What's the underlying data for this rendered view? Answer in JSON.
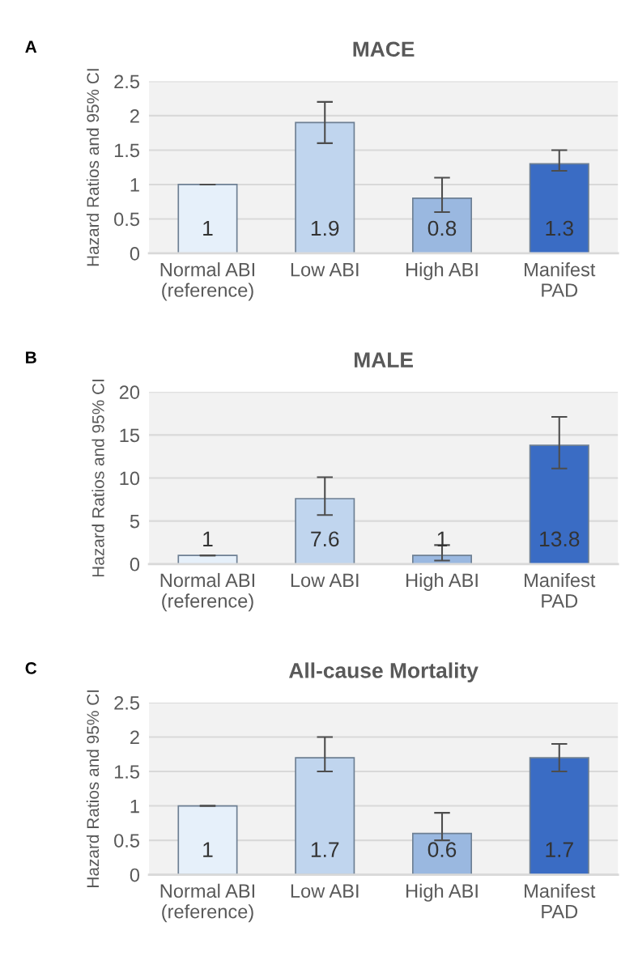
{
  "chart_data": [
    {
      "type": "bar",
      "title": "MACE",
      "ylabel": "Hazard Ratios and 95% CI",
      "annotations": [
        "A"
      ],
      "categories": [
        "Normal ABI\n(reference)",
        "Low ABI",
        "High ABI",
        "Manifest\nPAD"
      ],
      "values": [
        1,
        1.9,
        0.8,
        1.3
      ],
      "errors": [
        [
          1,
          1
        ],
        [
          1.6,
          2.2
        ],
        [
          0.6,
          1.1
        ],
        [
          1.2,
          1.5
        ]
      ],
      "colors": [
        "#e6f0fa",
        "#c0d5ee",
        "#9ab8e0",
        "#3a6cc4"
      ],
      "ylim": [
        0,
        2.5
      ],
      "yticks": [
        0,
        0.5,
        1,
        1.5,
        2,
        2.5
      ],
      "grid": "y",
      "data_labels": true
    },
    {
      "type": "bar",
      "title": "MALE",
      "ylabel": "Hazard Ratios and 95% CI",
      "annotations": [
        "B"
      ],
      "categories": [
        "Normal ABI\n(reference)",
        "Low ABI",
        "High ABI",
        "Manifest\nPAD"
      ],
      "values": [
        1,
        7.6,
        1,
        13.8
      ],
      "errors": [
        [
          1,
          1
        ],
        [
          5.7,
          10.1
        ],
        [
          0.4,
          2.2
        ],
        [
          11.1,
          17.1
        ]
      ],
      "colors": [
        "#e6f0fa",
        "#c0d5ee",
        "#9ab8e0",
        "#3a6cc4"
      ],
      "ylim": [
        0,
        20
      ],
      "yticks": [
        0,
        5,
        10,
        15,
        20
      ],
      "grid": "y",
      "data_labels": true
    },
    {
      "type": "bar",
      "title": "All-cause Mortality",
      "ylabel": "Hazard Ratios and 95% CI",
      "annotations": [
        "C"
      ],
      "categories": [
        "Normal ABI\n(reference)",
        "Low ABI",
        "High ABI",
        "Manifest\nPAD"
      ],
      "values": [
        1,
        1.7,
        0.6,
        1.7
      ],
      "errors": [
        [
          1,
          1
        ],
        [
          1.5,
          2.0
        ],
        [
          0.5,
          0.9
        ],
        [
          1.5,
          1.9
        ]
      ],
      "colors": [
        "#e6f0fa",
        "#c0d5ee",
        "#9ab8e0",
        "#3a6cc4"
      ],
      "ylim": [
        0,
        2.5
      ],
      "yticks": [
        0,
        0.5,
        1,
        1.5,
        2,
        2.5
      ],
      "grid": "y",
      "data_labels": true
    }
  ]
}
